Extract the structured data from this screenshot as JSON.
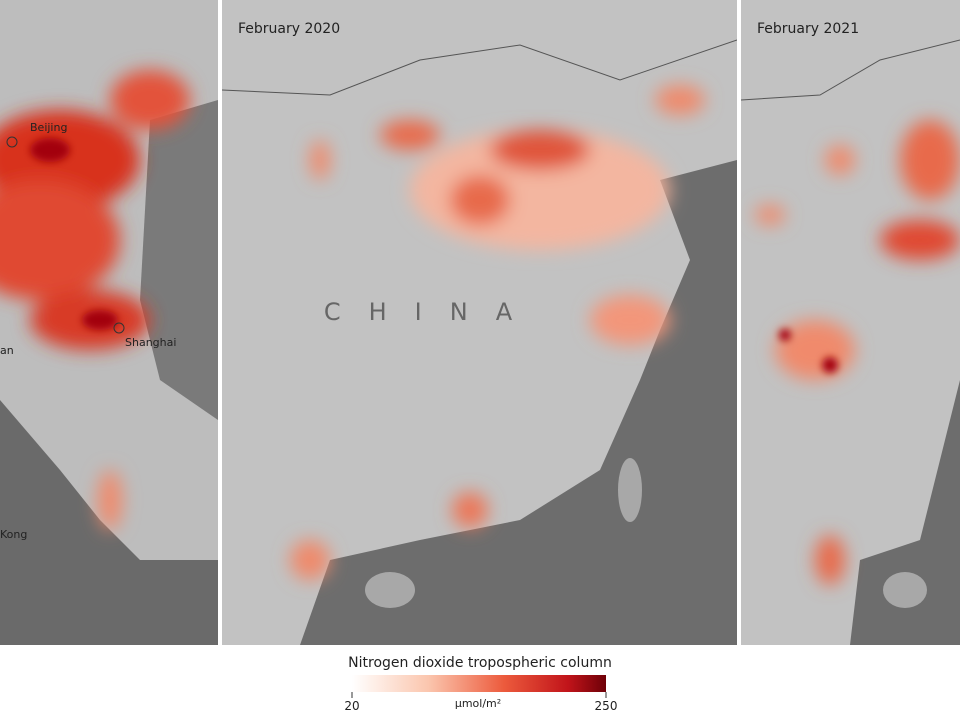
{
  "left_panel": {
    "places": [
      "Beijing",
      "Shanghai",
      "an",
      "Kong"
    ]
  },
  "middle_panel": {
    "title": "February 2020",
    "country": "CHINA"
  },
  "right_panel": {
    "title": "February 2021"
  },
  "colorbar": {
    "title": "Nitrogen dioxide tropospheric column",
    "min": 20,
    "unit": "µmol/m²",
    "max": 250
  }
}
